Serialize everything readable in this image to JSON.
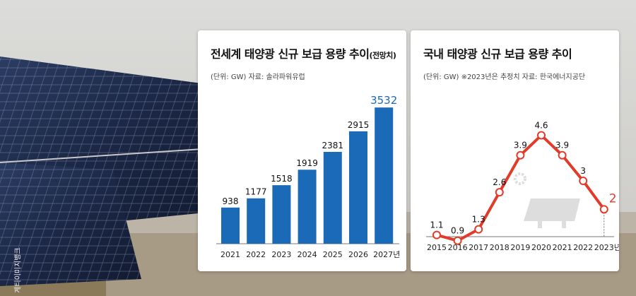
{
  "watermark": "게티이미지뱅크",
  "chart_data": [
    {
      "type": "bar",
      "title": "전세계 태양광 신규 보급 용량 추이",
      "title_suffix": "(전망치)",
      "subtitle": "(단위: GW) 자료: 솔라파워유럽",
      "categories": [
        "2021",
        "2022",
        "2023",
        "2024",
        "2025",
        "2026",
        "2027년"
      ],
      "values": [
        938,
        1177,
        1518,
        1919,
        2381,
        2915,
        3532
      ],
      "value_labels": [
        "938",
        "1177",
        "1518",
        "1919",
        "2381",
        "2915",
        "3532"
      ],
      "ylim": [
        0,
        3700
      ],
      "colors": {
        "bar": "#1a6ab8",
        "highlight_label": "#1a6ab8",
        "label": "#111111"
      }
    },
    {
      "type": "line",
      "title": "국내 태양광 신규 보급 용량 추이",
      "subtitle": "(단위: GW) ※2023년은 추정치  자료: 한국에너지공단",
      "categories": [
        "2015",
        "2016",
        "2017",
        "2018",
        "2019",
        "2020",
        "2021",
        "2022",
        "2023년"
      ],
      "values": [
        1.1,
        0.9,
        1.3,
        2.6,
        3.9,
        4.6,
        3.9,
        3,
        2
      ],
      "value_labels": [
        "1.1",
        "0.9",
        "1.3",
        "2.6",
        "3.9",
        "4.6",
        "3.9",
        "3",
        "2"
      ],
      "ylim": [
        0,
        5
      ],
      "colors": {
        "line": "#e23b2a",
        "highlight_label": "#e23b2a",
        "label": "#111111",
        "icon": "#dddddd"
      }
    }
  ]
}
